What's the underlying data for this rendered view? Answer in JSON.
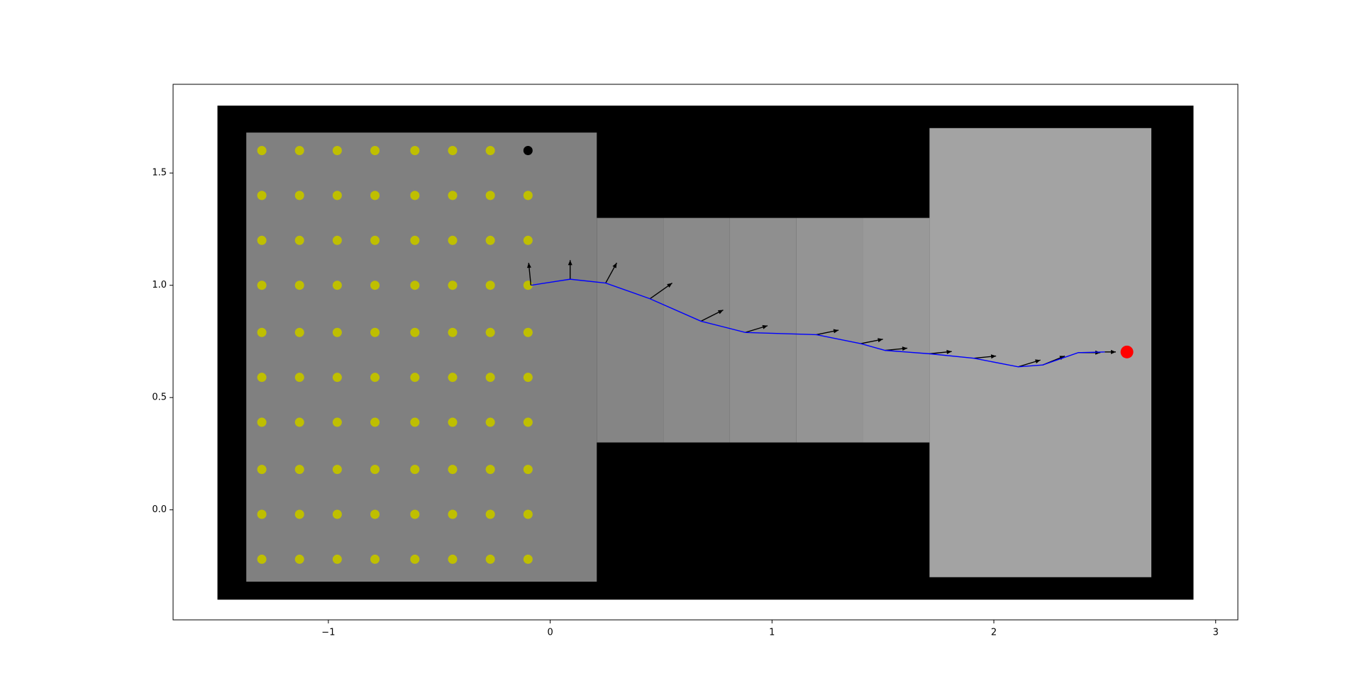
{
  "chart_data": {
    "type": "scatter",
    "xlim": [
      -1.7,
      3.1
    ],
    "ylim": [
      -0.49,
      1.895
    ],
    "xticks": [
      {
        "value": -1,
        "label": "−1"
      },
      0,
      1,
      2,
      3
    ],
    "yticks": [
      {
        "value": 0,
        "label": "0.0"
      },
      0.5,
      {
        "value": 1,
        "label": "1.0"
      },
      1.5
    ],
    "regions": [
      {
        "x": [
          -1.5,
          2.9
        ],
        "y": [
          -0.4,
          1.8
        ],
        "color": "#000000"
      },
      {
        "x": [
          -1.37,
          0.21
        ],
        "y": [
          -0.32,
          1.68
        ],
        "color": "#808080"
      },
      {
        "x": [
          0.21,
          0.51
        ],
        "y": [
          0.3,
          1.3
        ],
        "color": "#858585"
      },
      {
        "x": [
          0.51,
          0.81
        ],
        "y": [
          0.3,
          1.3
        ],
        "color": "#8a8a8a"
      },
      {
        "x": [
          0.81,
          1.11
        ],
        "y": [
          0.3,
          1.3
        ],
        "color": "#8f8f8f"
      },
      {
        "x": [
          1.11,
          1.41
        ],
        "y": [
          0.3,
          1.3
        ],
        "color": "#949494"
      },
      {
        "x": [
          1.41,
          1.71
        ],
        "y": [
          0.3,
          1.3
        ],
        "color": "#999999"
      },
      {
        "x": [
          1.71,
          2.71
        ],
        "y": [
          -0.3,
          1.7
        ],
        "color": "#a3a3a3"
      }
    ],
    "points": {
      "color": "#bfbf00",
      "x": [
        -1.3,
        -1.13,
        -0.96,
        -0.79,
        -0.61,
        -0.44,
        -0.27,
        -1.3,
        -1.13,
        -0.96,
        -0.79,
        -0.61,
        -0.44,
        -0.27,
        -0.1,
        -1.3,
        -1.13,
        -0.96,
        -0.79,
        -0.61,
        -0.44,
        -0.27,
        -0.1,
        -1.3,
        -1.13,
        -0.96,
        -0.79,
        -0.61,
        -0.44,
        -0.27,
        -0.1,
        -1.3,
        -1.13,
        -0.96,
        -0.79,
        -0.61,
        -0.44,
        -0.27,
        -0.1,
        -1.3,
        -1.13,
        -0.96,
        -0.79,
        -0.61,
        -0.44,
        -0.27,
        -0.1,
        -1.3,
        -1.13,
        -0.96,
        -0.79,
        -0.61,
        -0.44,
        -0.27,
        -0.1,
        -1.3,
        -1.13,
        -0.96,
        -0.79,
        -0.61,
        -0.44,
        -0.27,
        -0.1,
        -1.3,
        -1.13,
        -0.96,
        -0.79,
        -0.61,
        -0.44,
        -0.27,
        -0.1,
        -1.3,
        -1.13,
        -0.96,
        -0.79,
        -0.61,
        -0.44,
        -0.27,
        -0.1
      ],
      "y": [
        1.6,
        1.6,
        1.6,
        1.6,
        1.6,
        1.6,
        1.6,
        1.4,
        1.4,
        1.4,
        1.4,
        1.4,
        1.4,
        1.4,
        1.4,
        1.2,
        1.2,
        1.2,
        1.2,
        1.2,
        1.2,
        1.2,
        1.2,
        1.0,
        1.0,
        1.0,
        1.0,
        1.0,
        1.0,
        1.0,
        1.0,
        0.79,
        0.79,
        0.79,
        0.79,
        0.79,
        0.79,
        0.79,
        0.79,
        0.59,
        0.59,
        0.59,
        0.59,
        0.59,
        0.59,
        0.59,
        0.59,
        0.39,
        0.39,
        0.39,
        0.39,
        0.39,
        0.39,
        0.39,
        0.39,
        0.18,
        0.18,
        0.18,
        0.18,
        0.18,
        0.18,
        0.18,
        0.18,
        -0.02,
        -0.02,
        -0.02,
        -0.02,
        -0.02,
        -0.02,
        -0.02,
        -0.02,
        -0.22,
        -0.22,
        -0.22,
        -0.22,
        -0.22,
        -0.22,
        -0.22,
        -0.22
      ]
    },
    "start": {
      "color": "#000000",
      "x": [
        -0.1
      ],
      "y": [
        1.6
      ]
    },
    "goal": {
      "color": "#ff0000",
      "x": [
        2.6
      ],
      "y": [
        0.703
      ]
    },
    "path": {
      "color": "#0000ff",
      "x": [
        -0.087,
        0.09,
        0.25,
        0.45,
        0.68,
        0.88,
        1.2,
        1.4,
        1.51,
        1.71,
        1.91,
        2.11,
        2.22,
        2.38,
        2.5
      ],
      "y": [
        1.0,
        1.027,
        1.01,
        0.94,
        0.84,
        0.79,
        0.78,
        0.74,
        0.71,
        0.695,
        0.675,
        0.637,
        0.645,
        0.7,
        0.703
      ]
    },
    "quiver": {
      "color": "#000000",
      "x": [
        -0.087,
        0.09,
        0.25,
        0.45,
        0.68,
        0.88,
        1.2,
        1.4,
        1.51,
        1.71,
        1.91,
        2.11,
        2.22,
        2.38,
        2.5
      ],
      "y": [
        1.0,
        1.027,
        1.01,
        0.94,
        0.84,
        0.79,
        0.78,
        0.74,
        0.71,
        0.695,
        0.675,
        0.637,
        0.645,
        0.7,
        0.703
      ],
      "u": [
        -0.01,
        0.0,
        0.05,
        0.1,
        0.1,
        0.1,
        0.1,
        0.1,
        0.1,
        0.1,
        0.1,
        0.1,
        0.1,
        0.1,
        0.05
      ],
      "v": [
        0.1,
        0.085,
        0.09,
        0.07,
        0.05,
        0.03,
        0.02,
        0.02,
        0.01,
        0.01,
        0.01,
        0.03,
        0.04,
        0.0,
        0.0
      ]
    }
  }
}
